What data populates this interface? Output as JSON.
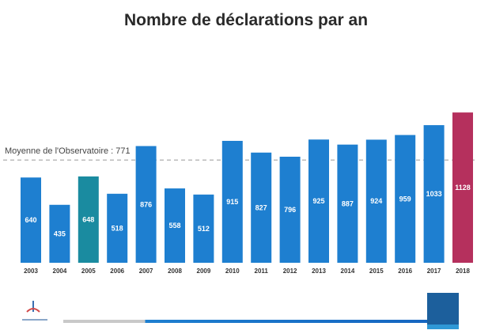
{
  "title": "Nombre de déclarations par an",
  "average_label": "Moyenne de l'Observatoire : 771",
  "colors": {
    "bar": "#1e7fd0",
    "bar_alt": "#1a8ba0",
    "bar_highlight": "#b5305d",
    "average_line": "#bbbbbb"
  },
  "chart_data": {
    "type": "bar",
    "title": "Nombre de déclarations par an",
    "categories": [
      "2003",
      "2004",
      "2005",
      "2006",
      "2007",
      "2008",
      "2009",
      "2010",
      "2011",
      "2012",
      "2013",
      "2014",
      "2015",
      "2016",
      "2017",
      "2018"
    ],
    "values": [
      640,
      435,
      648,
      518,
      876,
      558,
      512,
      915,
      827,
      796,
      925,
      887,
      924,
      959,
      1033,
      1128
    ],
    "value_labels": [
      "640",
      "435",
      "648",
      "518",
      "876",
      "558",
      "512",
      "915",
      "827",
      "796",
      "925",
      "887",
      "924",
      "959",
      "1033",
      "1128"
    ],
    "highlight_index": 15,
    "alt_indices": [
      2
    ],
    "average": 771,
    "ylim": [
      0,
      1200
    ],
    "grid": false,
    "legend": "none",
    "xlabel": "",
    "ylabel": ""
  }
}
